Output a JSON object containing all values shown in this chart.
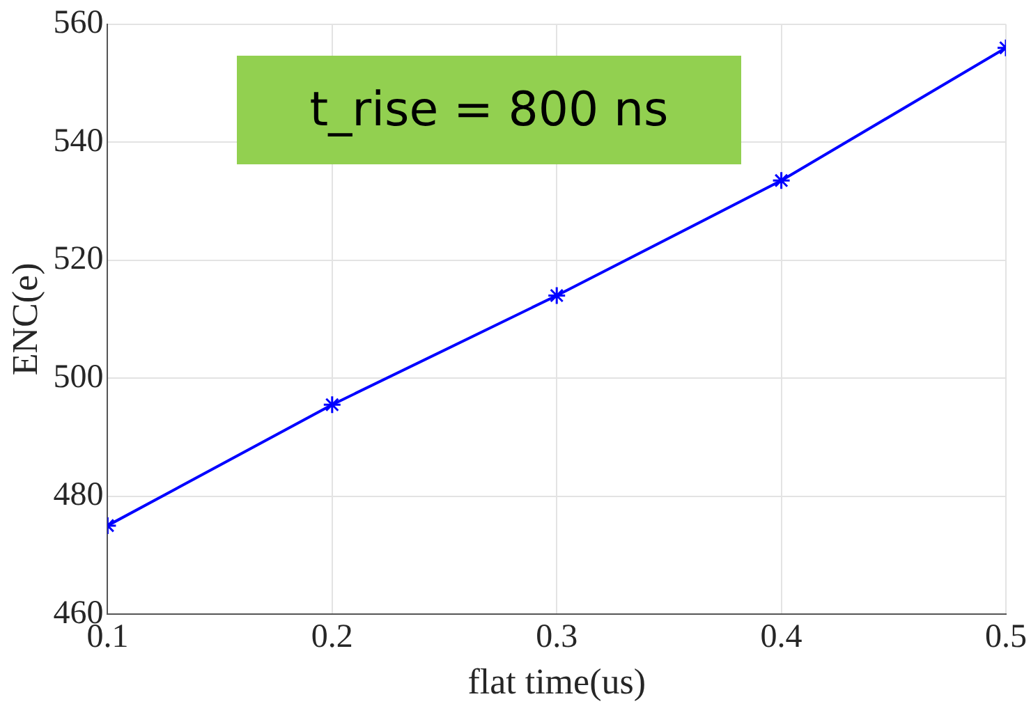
{
  "chart_data": {
    "type": "line",
    "xlabel": "flat time(us)",
    "ylabel": "ENC(e)",
    "x": [
      0.1,
      0.2,
      0.3,
      0.4,
      0.5
    ],
    "series": [
      {
        "color": "#0000ff",
        "values": [
          475,
          495.5,
          514,
          533.5,
          556
        ]
      }
    ],
    "xlim": [
      0.1,
      0.5
    ],
    "xticks": [
      0.1,
      0.2,
      0.3,
      0.4,
      0.5
    ],
    "ylim": [
      460,
      560
    ],
    "yticks": [
      460,
      480,
      500,
      520,
      540,
      560
    ],
    "grid": true,
    "marker": "cross",
    "line_style": "solid",
    "annotations": [
      "t_rise = 800 ns"
    ]
  }
}
